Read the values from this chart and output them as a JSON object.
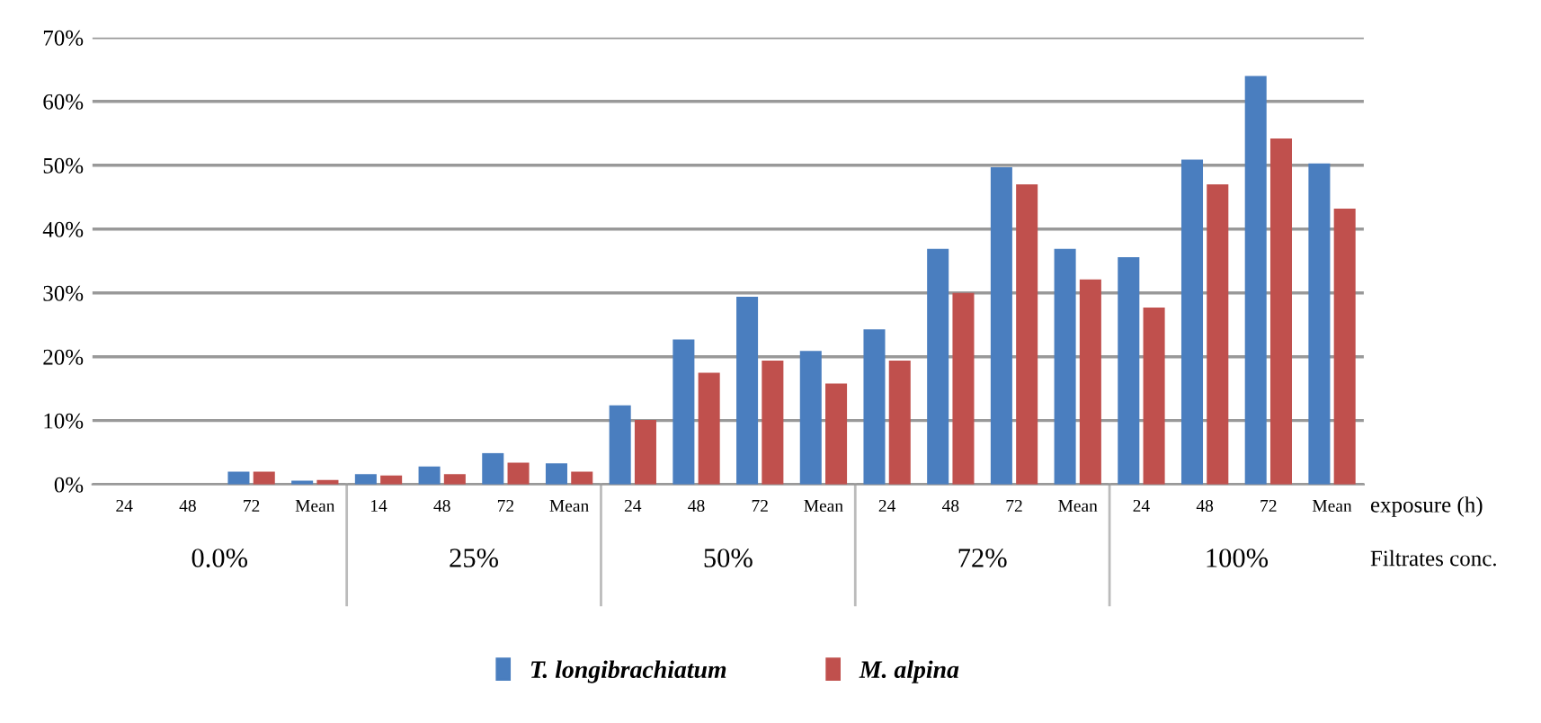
{
  "chart_data": {
    "type": "bar",
    "categories": [
      "24",
      "48",
      "72",
      "Mean",
      "14",
      "48",
      "72",
      "Mean",
      "24",
      "48",
      "72",
      "Mean",
      "24",
      "48",
      "72",
      "Mean",
      "24",
      "48",
      "72",
      "Mean"
    ],
    "series": [
      {
        "name": "T. longibrachiatum",
        "color": "#4a7ebf",
        "values": [
          0,
          0,
          2.0,
          0.6,
          1.6,
          2.8,
          4.9,
          3.3,
          12.4,
          22.7,
          29.4,
          20.9,
          24.3,
          36.9,
          49.7,
          36.9,
          35.6,
          50.9,
          64.0,
          50.3
        ]
      },
      {
        "name": "M. alpina",
        "color": "#c0504d",
        "values": [
          0,
          0,
          2.0,
          0.7,
          1.4,
          1.6,
          3.4,
          2.0,
          10.1,
          17.5,
          19.4,
          15.8,
          19.4,
          30.0,
          47.0,
          32.1,
          27.7,
          47.0,
          54.2,
          43.2
        ]
      }
    ],
    "ylim": [
      0,
      70
    ],
    "yticks": [
      {
        "value": 0,
        "label": "0%"
      },
      {
        "value": 10,
        "label": "10%"
      },
      {
        "value": 20,
        "label": "20%"
      },
      {
        "value": 30,
        "label": "30%"
      },
      {
        "value": 40,
        "label": "40%"
      },
      {
        "value": 50,
        "label": "50%"
      },
      {
        "value": 60,
        "label": "60%"
      },
      {
        "value": 70,
        "label": "70%"
      }
    ],
    "grid": "y",
    "legend": "bottom",
    "annotations": [
      "0.0%",
      "25%",
      "50%",
      "72%",
      "100%",
      "exposure (h)",
      "Filtrates conc."
    ]
  }
}
